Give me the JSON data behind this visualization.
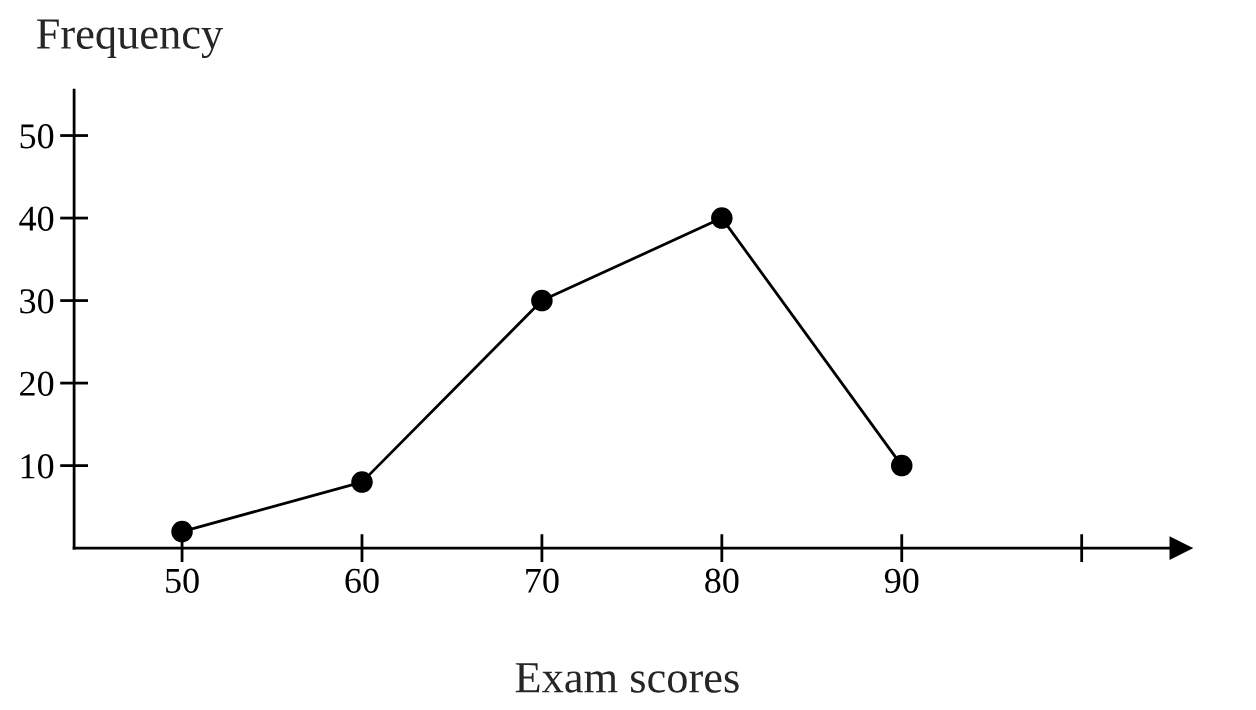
{
  "chart_data": {
    "type": "line",
    "xlabel": "Exam scores",
    "ylabel": "Frequency",
    "x": [
      50,
      60,
      70,
      80,
      90
    ],
    "series": [
      {
        "color": "#000000",
        "values": [
          2,
          8,
          30,
          40,
          10
        ]
      }
    ],
    "xlim": [
      44,
      105.5
    ],
    "ylim": [
      0,
      55.5
    ],
    "xticks": [
      50,
      60,
      70,
      80,
      90,
      {
        "value": 100,
        "label": null
      }
    ],
    "yticks": [
      10,
      20,
      30,
      40,
      50
    ],
    "marker": "circle",
    "line_style": "solid",
    "grid": false,
    "legend": false
  }
}
